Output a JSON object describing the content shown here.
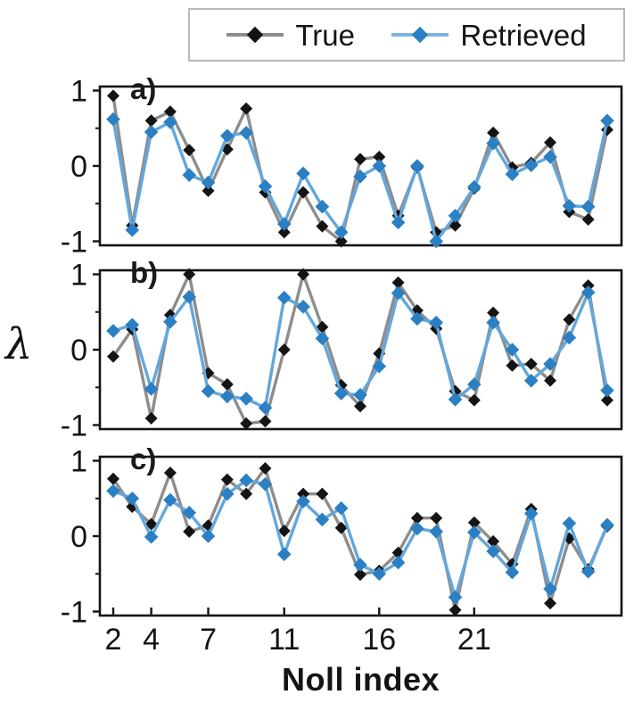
{
  "figure": {
    "ylabel": "λ",
    "xlabel": "Noll index",
    "colors": {
      "true_line": "#8d8d8d",
      "true_marker": "#141414",
      "retrieved_line": "#62a7dc",
      "retrieved_marker": "#2b7fc3",
      "legend_retrieved_line": "#7fb3e1",
      "frame": "#141414",
      "text": "#141414",
      "legend_border": "#b9b9b9"
    },
    "legend": {
      "items": [
        {
          "label": "True"
        },
        {
          "label": "Retrieved"
        }
      ]
    }
  },
  "chart_data": [
    {
      "type": "line",
      "panel_label": "a)",
      "xlabel": "Noll index",
      "ylabel": "λ",
      "ylim": [
        -1,
        1
      ],
      "yticks": [
        1,
        0,
        -1
      ],
      "yticks_minor": [
        0.5,
        -0.5
      ],
      "x": [
        2,
        3,
        4,
        5,
        6,
        7,
        8,
        9,
        10,
        11,
        12,
        13,
        14,
        15,
        16,
        17,
        18,
        19,
        20,
        21,
        22,
        23,
        24,
        25,
        26,
        27,
        28
      ],
      "series": [
        {
          "name": "True",
          "values": [
            0.93,
            -0.79,
            0.6,
            0.72,
            0.21,
            -0.33,
            0.22,
            0.76,
            -0.35,
            -0.88,
            -0.35,
            -0.8,
            -1.0,
            0.09,
            0.12,
            -0.66,
            -0.02,
            -0.88,
            -0.79,
            -0.3,
            0.44,
            -0.02,
            0.04,
            0.31,
            -0.61,
            -0.71,
            0.48
          ]
        },
        {
          "name": "Retrieved",
          "values": [
            0.62,
            -0.85,
            0.45,
            0.58,
            -0.12,
            -0.22,
            0.4,
            0.44,
            -0.27,
            -0.77,
            -0.1,
            -0.54,
            -0.88,
            -0.14,
            0.0,
            -0.75,
            0.0,
            -1.0,
            -0.66,
            -0.28,
            0.3,
            -0.11,
            0.01,
            0.12,
            -0.53,
            -0.54,
            0.6
          ]
        }
      ]
    },
    {
      "type": "line",
      "panel_label": "b)",
      "ylim": [
        -1,
        1
      ],
      "yticks": [
        1,
        0,
        -1
      ],
      "yticks_minor": [
        0.5,
        -0.5
      ],
      "x": [
        2,
        3,
        4,
        5,
        6,
        7,
        8,
        9,
        10,
        11,
        12,
        13,
        14,
        15,
        16,
        17,
        18,
        19,
        20,
        21,
        22,
        23,
        24,
        25,
        26,
        27,
        28
      ],
      "series": [
        {
          "name": "True",
          "values": [
            -0.09,
            0.27,
            -0.91,
            0.46,
            1.0,
            -0.31,
            -0.46,
            -0.98,
            -0.95,
            0.0,
            1.0,
            0.3,
            -0.47,
            -0.75,
            -0.05,
            0.89,
            0.52,
            0.28,
            -0.55,
            -0.67,
            0.49,
            -0.21,
            -0.19,
            -0.41,
            0.4,
            0.85,
            -0.67
          ]
        },
        {
          "name": "Retrieved",
          "values": [
            0.25,
            0.33,
            -0.52,
            0.37,
            0.7,
            -0.55,
            -0.62,
            -0.65,
            -0.77,
            0.69,
            0.57,
            0.15,
            -0.58,
            -0.6,
            -0.22,
            0.75,
            0.41,
            0.36,
            -0.66,
            -0.46,
            0.36,
            0.0,
            -0.41,
            -0.19,
            0.16,
            0.76,
            -0.54
          ]
        }
      ]
    },
    {
      "type": "line",
      "panel_label": "c)",
      "ylim": [
        -1,
        1
      ],
      "yticks": [
        1,
        0,
        -1
      ],
      "yticks_minor": [
        0.5,
        -0.5
      ],
      "xticks": [
        2,
        4,
        7,
        11,
        16,
        21
      ],
      "x": [
        2,
        3,
        4,
        5,
        6,
        7,
        8,
        9,
        10,
        11,
        12,
        13,
        14,
        15,
        16,
        17,
        18,
        19,
        20,
        21,
        22,
        23,
        24,
        25,
        26,
        27,
        28
      ],
      "series": [
        {
          "name": "True",
          "values": [
            0.76,
            0.39,
            0.16,
            0.84,
            0.06,
            0.14,
            0.75,
            0.56,
            0.9,
            0.07,
            0.56,
            0.56,
            0.11,
            -0.51,
            -0.46,
            -0.22,
            0.24,
            0.24,
            -0.98,
            0.18,
            -0.07,
            -0.37,
            0.36,
            -0.89,
            -0.03,
            -0.44,
            0.13
          ]
        },
        {
          "name": "Retrieved",
          "values": [
            0.6,
            0.5,
            -0.01,
            0.48,
            0.31,
            0.0,
            0.56,
            0.74,
            0.69,
            -0.24,
            0.46,
            0.22,
            0.37,
            -0.38,
            -0.5,
            -0.35,
            0.1,
            0.06,
            -0.81,
            0.05,
            -0.2,
            -0.48,
            0.3,
            -0.7,
            0.17,
            -0.47,
            0.15
          ]
        }
      ]
    }
  ]
}
